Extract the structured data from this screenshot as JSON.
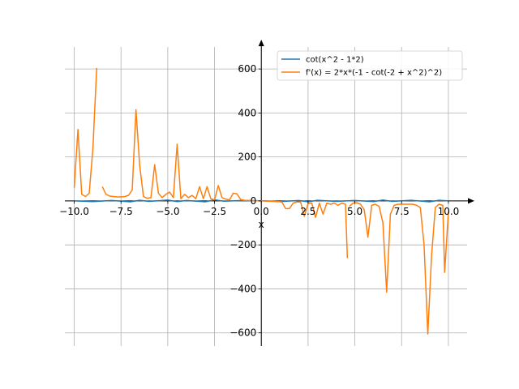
{
  "chart_data": {
    "type": "line",
    "title": "",
    "xlabel": "x",
    "ylabel": "",
    "xlim": [
      -10.5,
      11.0
    ],
    "ylim": [
      -660,
      700
    ],
    "grid": true,
    "legend_position": "top-right",
    "x_ticks": [
      -10.0,
      -7.5,
      -5.0,
      -2.5,
      0.0,
      2.5,
      5.0,
      7.5,
      10.0
    ],
    "x_tick_labels": [
      "−10.0",
      "−7.5",
      "−5.0",
      "−2.5",
      "0.0",
      "2.5",
      "5.0",
      "7.5",
      "10.0"
    ],
    "y_ticks": [
      -600,
      -400,
      -200,
      0,
      200,
      400,
      600
    ],
    "y_tick_labels": [
      "−600",
      "−400",
      "−200",
      "0",
      "200",
      "400",
      "600"
    ],
    "series": [
      {
        "name": "cot(x^2 - 1*2)",
        "color": "#1f77b4",
        "x": [
          -10.0,
          -9.0,
          -8.0,
          -7.0,
          -6.5,
          -6.0,
          -5.0,
          -4.5,
          -4.0,
          -3.0,
          -2.5,
          -2.0,
          -1.0,
          0.0,
          1.0,
          2.0,
          2.5,
          3.0,
          4.0,
          5.0,
          6.0,
          6.5,
          7.0,
          8.0,
          9.0,
          9.5,
          10.0
        ],
        "y": [
          0,
          -3,
          2,
          -4,
          3,
          -2,
          4,
          -3,
          2,
          -4,
          5,
          -1,
          2,
          0.5,
          -3,
          2,
          -4,
          3,
          -2,
          2,
          -3,
          4,
          -2,
          3,
          -4,
          3,
          0
        ]
      },
      {
        "name": "f'(x) = 2*x*(-1 - cot(-2 + x^2)^2)",
        "color": "#ff7f0e",
        "segments": [
          {
            "x": [
              -10.0,
              -9.8,
              -9.6,
              -9.4,
              -9.2,
              -9.0,
              -8.8
            ],
            "y": [
              60,
              325,
              30,
              20,
              35,
              240,
              605
            ]
          },
          {
            "x": [
              -8.5,
              -8.3,
              -8.1,
              -7.9,
              -7.7,
              -7.5,
              -7.3,
              -7.1,
              -6.9,
              -6.7,
              -6.5,
              -6.3,
              -6.1,
              -5.9,
              -5.7,
              -5.5,
              -5.3,
              -5.1,
              -4.9,
              -4.7,
              -4.5,
              -4.3,
              -4.1,
              -3.9,
              -3.7,
              -3.5,
              -3.3,
              -3.1,
              -2.9,
              -2.7,
              -2.5,
              -2.3,
              -2.1,
              -1.9,
              -1.7,
              -1.5,
              -1.3,
              -1.1,
              -0.9,
              -0.7,
              -0.5,
              -0.3,
              -0.1,
              0.1,
              0.3,
              0.5,
              0.7,
              0.9,
              1.1,
              1.3,
              1.5,
              1.7,
              1.9,
              2.1,
              2.3,
              2.5,
              2.7,
              2.9,
              3.1,
              3.3,
              3.5,
              3.7,
              3.9,
              4.1,
              4.3,
              4.5,
              4.6
            ],
            "y": [
              65,
              30,
              22,
              20,
              18,
              18,
              20,
              25,
              50,
              415,
              160,
              20,
              12,
              15,
              165,
              35,
              15,
              30,
              40,
              15,
              258,
              10,
              30,
              15,
              25,
              10,
              65,
              10,
              65,
              10,
              5,
              70,
              15,
              8,
              5,
              35,
              32,
              6,
              3,
              2,
              1,
              1,
              0,
              0,
              -1,
              -1,
              -2,
              -3,
              -5,
              -35,
              -35,
              -10,
              -5,
              -5,
              -70,
              -12,
              -10,
              -75,
              -10,
              -60,
              -10,
              -15,
              -10,
              -20,
              -10,
              -15,
              -260
            ]
          },
          {
            "x": [
              4.7,
              4.9,
              5.1,
              5.3,
              5.5,
              5.7,
              5.9,
              6.1,
              6.3,
              6.5,
              6.7,
              6.9,
              7.1,
              7.3,
              7.5,
              7.7,
              7.9,
              8.1,
              8.3,
              8.5,
              8.7,
              8.9,
              9.1,
              9.3,
              9.5,
              9.7,
              9.8,
              10.0
            ],
            "y": [
              -25,
              -10,
              -8,
              -15,
              -40,
              -165,
              -20,
              -15,
              -25,
              -100,
              -415,
              -60,
              -20,
              -15,
              -15,
              -15,
              -15,
              -15,
              -20,
              -30,
              -200,
              -605,
              -250,
              -30,
              -15,
              -20,
              -325,
              -50
            ]
          }
        ]
      }
    ]
  }
}
